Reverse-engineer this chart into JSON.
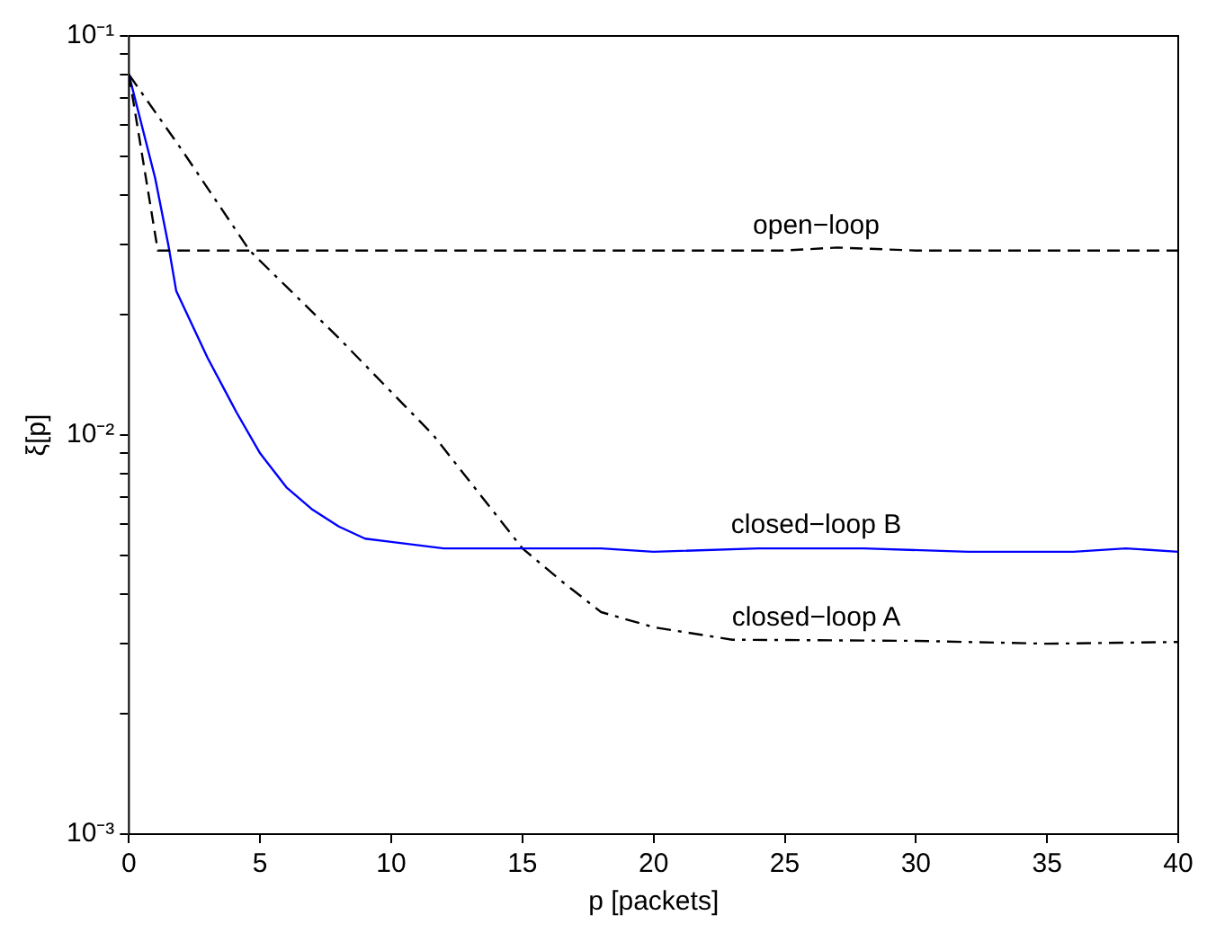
{
  "chart_data": {
    "type": "line",
    "xlabel": "p [packets]",
    "ylabel": "ξ[p]",
    "log": "y",
    "xlim": [
      0,
      40
    ],
    "xticks": [
      0,
      5,
      10,
      15,
      20,
      25,
      30,
      35,
      40
    ],
    "ylim": [
      0.001,
      0.1
    ],
    "yticks": [
      {
        "value": 0.001,
        "label": "10⁻³"
      },
      {
        "value": 0.002,
        "label": null
      },
      {
        "value": 0.003,
        "label": null
      },
      {
        "value": 0.004,
        "label": null
      },
      {
        "value": 0.005,
        "label": null
      },
      {
        "value": 0.006,
        "label": null
      },
      {
        "value": 0.007,
        "label": null
      },
      {
        "value": 0.008,
        "label": null
      },
      {
        "value": 0.009,
        "label": null
      },
      {
        "value": 0.01,
        "label": "10⁻²"
      },
      {
        "value": 0.02,
        "label": null
      },
      {
        "value": 0.03,
        "label": null
      },
      {
        "value": 0.04,
        "label": null
      },
      {
        "value": 0.05,
        "label": null
      },
      {
        "value": 0.06,
        "label": null
      },
      {
        "value": 0.07,
        "label": null
      },
      {
        "value": 0.08,
        "label": null
      },
      {
        "value": 0.09,
        "label": null
      },
      {
        "value": 0.1,
        "label": "10⁻¹"
      }
    ],
    "grid": false,
    "marker": "none",
    "series": [
      {
        "name": "open−loop",
        "color": "#000000",
        "line_style": "dashed",
        "x": [
          0,
          1.1,
          5,
          10,
          15,
          20,
          25,
          27,
          30,
          35,
          40
        ],
        "values": [
          0.08,
          0.029,
          0.029,
          0.029,
          0.029,
          0.029,
          0.029,
          0.0295,
          0.029,
          0.029,
          0.029
        ]
      },
      {
        "name": "closed−loop B",
        "color": "#0000ff",
        "line_style": "solid",
        "x": [
          0,
          1,
          1.5,
          1.8,
          3,
          4.1,
          5,
          6,
          7,
          8,
          9,
          10,
          12,
          15,
          18,
          20,
          24,
          28,
          32,
          36,
          38,
          40
        ],
        "values": [
          0.08,
          0.044,
          0.03,
          0.023,
          0.0156,
          0.0114,
          0.009,
          0.0074,
          0.0065,
          0.0059,
          0.0055,
          0.0054,
          0.0052,
          0.0052,
          0.0052,
          0.0051,
          0.0052,
          0.0052,
          0.0051,
          0.0051,
          0.0052,
          0.0051
        ]
      },
      {
        "name": "closed−loop A",
        "color": "#000000",
        "line_style": "dashdot",
        "x": [
          0,
          2,
          4.6,
          8,
          11.6,
          15,
          16.5,
          18,
          20,
          23,
          30,
          35,
          40
        ],
        "values": [
          0.08,
          0.052,
          0.029,
          0.0175,
          0.01,
          0.0052,
          0.0043,
          0.0036,
          0.0033,
          0.00307,
          0.00305,
          0.003,
          0.00303
        ]
      }
    ]
  }
}
